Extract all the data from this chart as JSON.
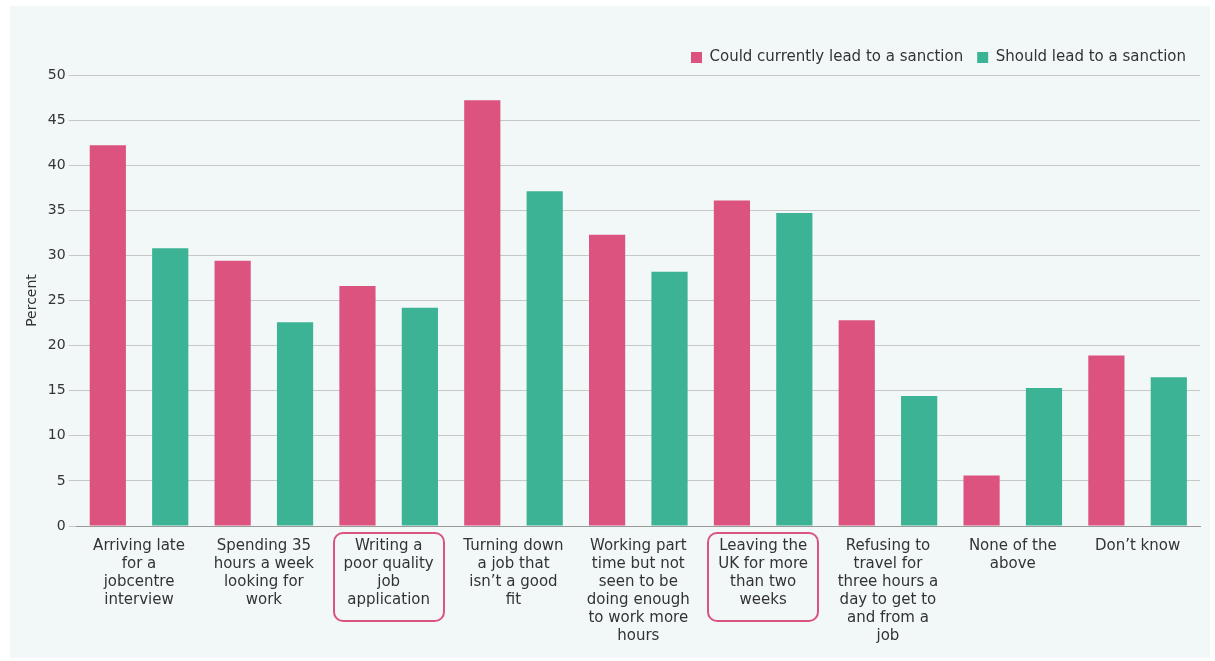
{
  "chart_data": {
    "type": "bar",
    "ylabel": "Percent",
    "categories": [
      "Arriving late for a jobcentre interview",
      "Spending 35 hours a week looking for work",
      "Writing a poor quality job application",
      "Turning down a job that isn’t a good fit",
      "Working part time but not seen to be doing enough to work more hours",
      "Leaving the UK for more than two weeks",
      "Refusing to travel for three hours a day to get to and from a job",
      "None of the above",
      "Don’t know"
    ],
    "series": [
      {
        "name": "Could currently lead to a sanction",
        "color": "#dc5380",
        "values": [
          42.2,
          29.4,
          26.6,
          47.2,
          32.3,
          36.1,
          22.8,
          5.6,
          18.9
        ]
      },
      {
        "name": "Should lead to a sanction",
        "color": "#3bb394",
        "values": [
          30.8,
          22.6,
          24.2,
          37.1,
          28.2,
          34.7,
          14.4,
          15.3,
          16.5
        ]
      }
    ],
    "ylim": [
      0,
      50
    ],
    "yticks": [
      0,
      5,
      10,
      15,
      20,
      25,
      30,
      35,
      40,
      45,
      50
    ],
    "grid": "y",
    "legend": "top right"
  }
}
